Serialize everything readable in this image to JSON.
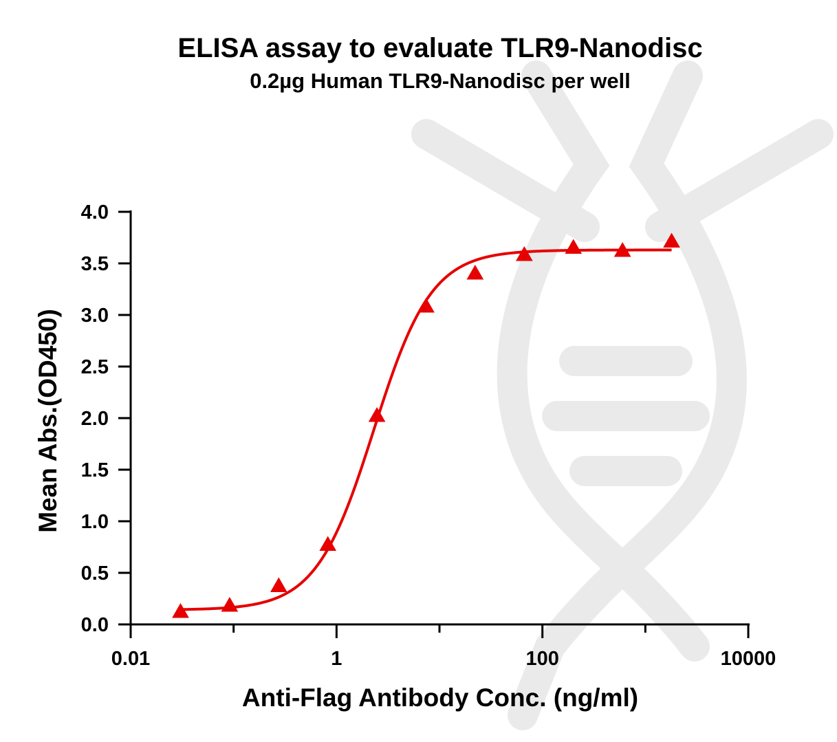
{
  "chart_data": {
    "type": "scatter",
    "title": "ELISA assay to evaluate TLR9-Nanodisc",
    "subtitle": "0.2µg Human TLR9-Nanodisc per well",
    "xlabel": "Anti-Flag Antibody Conc. (ng/ml)",
    "ylabel": "Mean Abs.(OD450)",
    "xscale": "log",
    "xlim": [
      0.01,
      10000
    ],
    "ylim": [
      0,
      4.0
    ],
    "x_ticks": [
      "0.01",
      "1",
      "100",
      "10000"
    ],
    "y_ticks": [
      "0.0",
      "0.5",
      "1.0",
      "1.5",
      "2.0",
      "2.5",
      "3.0",
      "3.5",
      "4.0"
    ],
    "grid": false,
    "legend": "none",
    "series": [
      {
        "marker": "triangle",
        "color": "#e60000",
        "x": [
          0.0305,
          0.0915,
          0.2745,
          0.8235,
          2.47,
          7.41,
          22.2,
          66.7,
          200,
          600,
          1800
        ],
        "y": [
          0.12,
          0.18,
          0.37,
          0.77,
          2.02,
          3.08,
          3.4,
          3.58,
          3.65,
          3.62,
          3.71
        ]
      }
    ],
    "fit_curve": {
      "model": "4PL",
      "bottom": 0.14,
      "top": 3.63,
      "ec50": 2.3,
      "hill": 1.55,
      "color": "#e60000"
    }
  },
  "watermark": {
    "icon": "dna-logo-icon",
    "color": "#e6e6e6"
  }
}
